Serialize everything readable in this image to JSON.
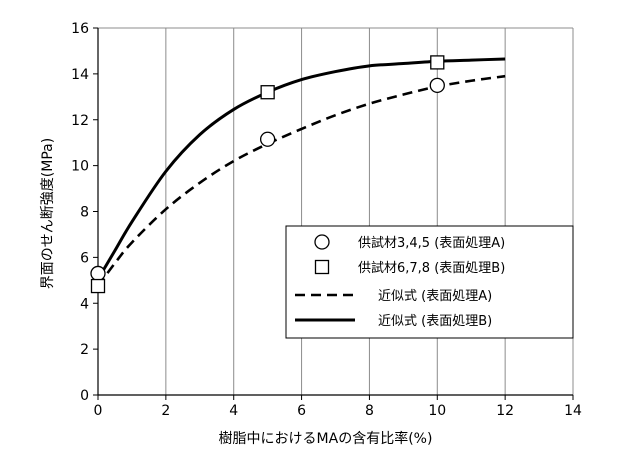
{
  "chart_data": {
    "type": "scatter",
    "xlabel": "樹脂中におけるMAの含有比率(%)",
    "ylabel": "界面のせん断強度(MPa)",
    "xlim": [
      0,
      14
    ],
    "ylim": [
      0,
      16
    ],
    "xticks": [
      0,
      2,
      4,
      6,
      8,
      10,
      12,
      14
    ],
    "yticks": [
      0,
      2,
      4,
      6,
      8,
      10,
      12,
      14,
      16
    ],
    "grid": "vertical",
    "legend_position": "right",
    "series": [
      {
        "name": "供試材3,4,5 (表面処理A)",
        "kind": "points",
        "marker": "circle",
        "x": [
          0,
          5,
          10
        ],
        "y": [
          5.3,
          11.15,
          13.5
        ]
      },
      {
        "name": "供試材6,7,8 (表面処理B)",
        "kind": "points",
        "marker": "square",
        "x": [
          0,
          5,
          10
        ],
        "y": [
          4.75,
          13.2,
          14.5
        ]
      },
      {
        "name": "近似式 (表面処理A)",
        "kind": "line",
        "style": "dashed",
        "x": [
          0,
          0.5,
          1,
          2,
          3,
          4,
          5,
          6,
          7,
          8,
          9,
          10,
          11,
          12
        ],
        "y": [
          4.75,
          5.75,
          6.65,
          8.1,
          9.25,
          10.2,
          10.95,
          11.6,
          12.2,
          12.7,
          13.1,
          13.45,
          13.7,
          13.9
        ]
      },
      {
        "name": "近似式 (表面処理B)",
        "kind": "line",
        "style": "solid",
        "x": [
          0,
          0.5,
          1,
          2,
          3,
          4,
          5,
          6,
          7,
          8,
          9,
          10,
          11,
          12
        ],
        "y": [
          5.05,
          6.3,
          7.55,
          9.75,
          11.35,
          12.45,
          13.2,
          13.75,
          14.1,
          14.35,
          14.45,
          14.55,
          14.6,
          14.65
        ]
      }
    ]
  }
}
